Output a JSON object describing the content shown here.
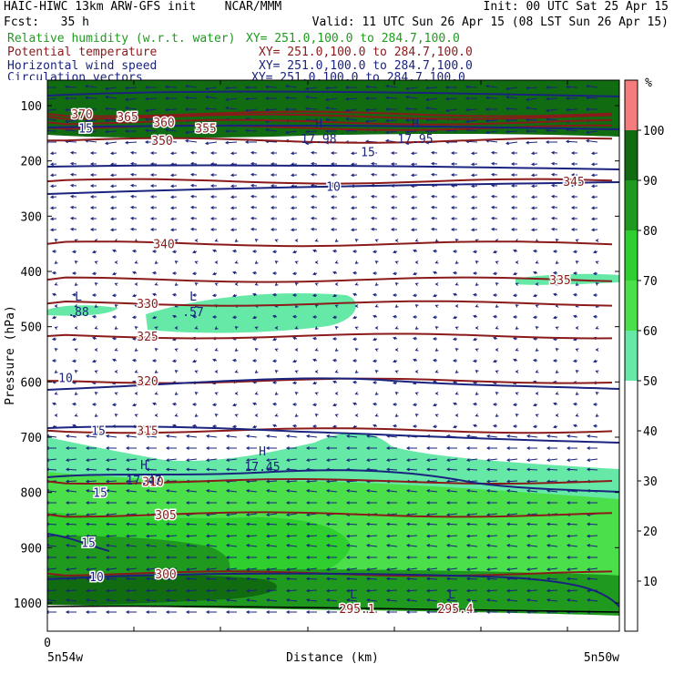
{
  "header": {
    "left_line1": "HAIC-HIWC 13km ARW-GFS init    NCAR/MMM",
    "left_line2": "Fcst:   35 h",
    "init_text": "Init: 00 UTC Sat 25 Apr 15",
    "valid_text": "Valid: 11 UTC Sun 26 Apr 15 (08 LST Sun 26 Apr 15)",
    "fields": [
      {
        "name": "Relative humidity (w.r.t. water)",
        "xy": "XY= 251.0,100.0 to 284.7,100.0",
        "color": "#1f9a1f"
      },
      {
        "name": "Potential temperature",
        "xy": "XY= 251.0,100.0 to 284.7,100.0",
        "color": "#8b1a1a"
      },
      {
        "name": "Horizontal wind speed",
        "xy": "XY= 251.0,100.0 to 284.7,100.0",
        "color": "#1a237e"
      },
      {
        "name": "Circulation vectors",
        "xy": "XY= 251.0,100.0 to 284.7,100.0",
        "color": "#1a237e"
      }
    ]
  },
  "chart_data": {
    "type": "cross-section",
    "ylabel": "Pressure (hPa)",
    "xlabel": "Distance (km)",
    "y_ticks": [
      100,
      200,
      300,
      400,
      500,
      600,
      700,
      800,
      900,
      1000
    ],
    "ylim": [
      50,
      1050
    ],
    "x_ticks": [
      "0"
    ],
    "x_end_labels": {
      "left": "5n54w",
      "right": "5n50w"
    },
    "colorbar": {
      "unit": "%",
      "levels": [
        10,
        20,
        30,
        40,
        50,
        60,
        70,
        80,
        90,
        100
      ],
      "colors": [
        "#ffffff",
        "#ffffff",
        "#ffffff",
        "#ffffff",
        "#ffffff",
        "#66e8a6",
        "#4be04b",
        "#2fcf2f",
        "#1f9a1f",
        "#116b11",
        "#f47c7c"
      ]
    },
    "theta_contours": [
      {
        "label": "370",
        "p": 115
      },
      {
        "label": "365",
        "p": 120
      },
      {
        "label": "360",
        "p": 130
      },
      {
        "label": "355",
        "p": 140
      },
      {
        "label": "350",
        "p": 163
      },
      {
        "label": "345",
        "p": 237
      },
      {
        "label": "340",
        "p": 350
      },
      {
        "label": "335",
        "p": 415
      },
      {
        "label": "330",
        "p": 458
      },
      {
        "label": "325",
        "p": 517
      },
      {
        "label": "320",
        "p": 598
      },
      {
        "label": "315",
        "p": 688
      },
      {
        "label": "310",
        "p": 780
      },
      {
        "label": "305",
        "p": 840
      },
      {
        "label": "300",
        "p": 947
      },
      {
        "label": "295.1",
        "p": 1010
      },
      {
        "label": "295.4",
        "p": 1010
      }
    ],
    "wind_contours": [
      {
        "label": "15",
        "p": 140
      },
      {
        "label": "15",
        "p": 183
      },
      {
        "label": "10",
        "p": 246
      },
      {
        "label": "10",
        "p": 592
      },
      {
        "label": "15",
        "p": 688
      },
      {
        "label": "15",
        "p": 800
      },
      {
        "label": "15",
        "p": 890
      },
      {
        "label": "10",
        "p": 952
      }
    ],
    "extrema": [
      {
        "kind": "H",
        "value": "17.98"
      },
      {
        "kind": "H",
        "value": "17.95"
      },
      {
        "kind": "L",
        "value": ".88"
      },
      {
        "kind": "L",
        "value": ".57"
      },
      {
        "kind": "H",
        "value": "17.45"
      },
      {
        "kind": "H",
        "value": "17.47"
      },
      {
        "kind": "L",
        "value": "295.1"
      },
      {
        "kind": "L",
        "value": "295.4"
      }
    ]
  }
}
